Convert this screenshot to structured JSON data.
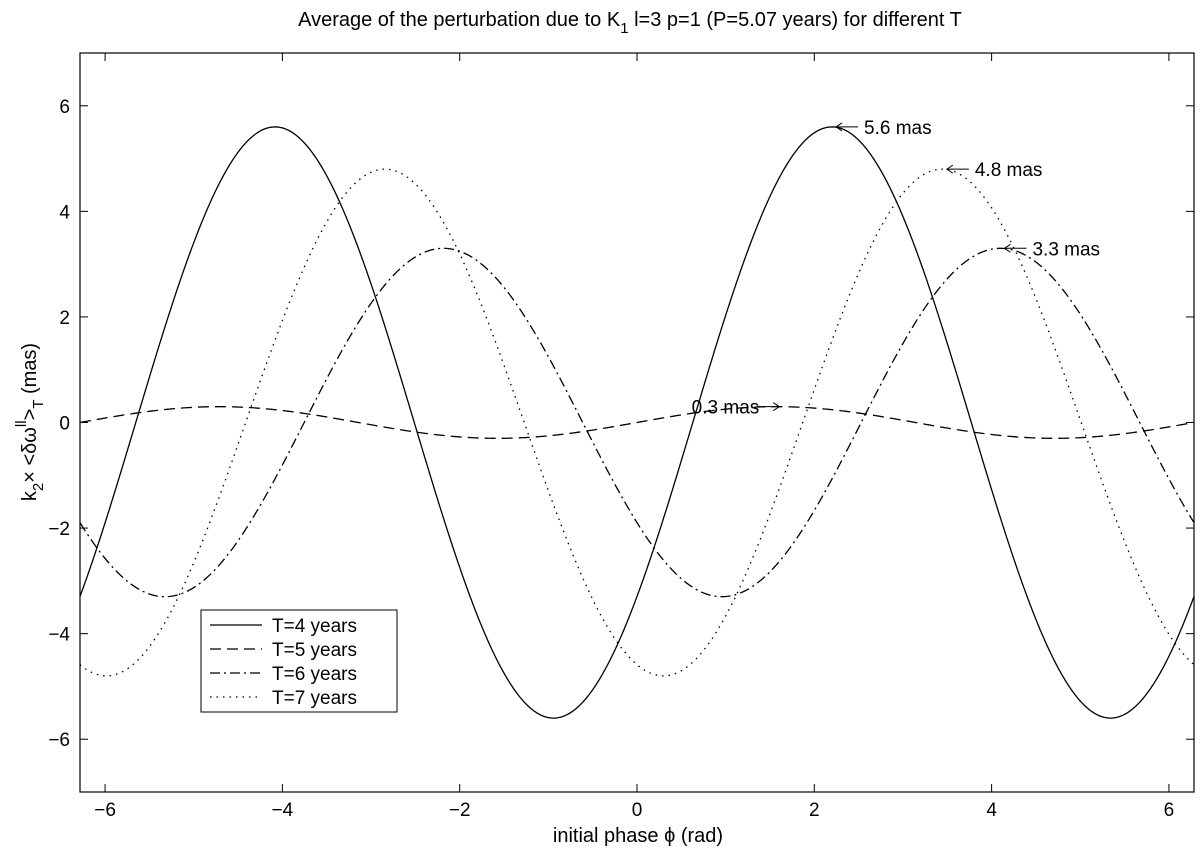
{
  "chart_data": {
    "type": "line",
    "title": {
      "pre": "Average of the perturbation due to K",
      "sub": "1",
      "post": " l=3 p=1 (P=5.07 years) for different T"
    },
    "xlabel": "initial phase ϕ (rad)",
    "ylabel": {
      "k": "k",
      "k_sub": "2",
      "mid": "× <δω",
      "sup": "ll",
      "close": ">",
      "close_sub": "T",
      "unit": " (mas)"
    },
    "xlim": [
      -6.283,
      6.283
    ],
    "ylim": [
      -7,
      7
    ],
    "xticks": [
      -6,
      -4,
      -2,
      0,
      2,
      4,
      6
    ],
    "yticks": [
      -6,
      -4,
      -2,
      0,
      2,
      4,
      6
    ],
    "legend_position": "lower-left",
    "series": [
      {
        "name": "T=4 years",
        "style": "solid",
        "amplitude": 5.6,
        "peak_phase": 2.2
      },
      {
        "name": "T=5 years",
        "style": "dashed",
        "amplitude": 0.3,
        "peak_phase": 1.57
      },
      {
        "name": "T=6 years",
        "style": "dashdot",
        "amplitude": 3.3,
        "peak_phase": 4.1
      },
      {
        "name": "T=7 years",
        "style": "dotted",
        "amplitude": 4.8,
        "peak_phase": 3.44
      }
    ],
    "annotations": [
      {
        "text": "5.6 mas",
        "x": 2.2,
        "y": 5.6,
        "side": "right"
      },
      {
        "text": "4.8 mas",
        "x": 3.45,
        "y": 4.8,
        "side": "right"
      },
      {
        "text": "3.3 mas",
        "x": 4.1,
        "y": 3.3,
        "side": "right"
      },
      {
        "text": "0.3 mas",
        "x": 1.65,
        "y": 0.3,
        "side": "left"
      }
    ]
  }
}
